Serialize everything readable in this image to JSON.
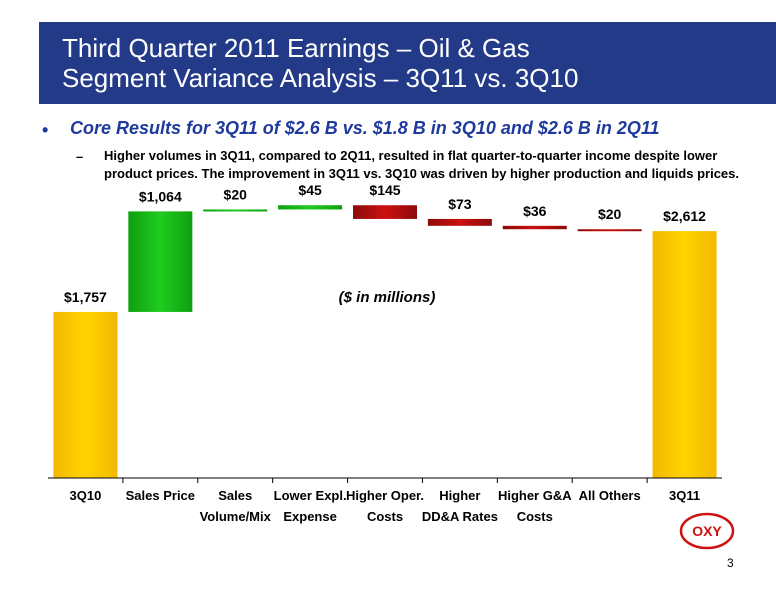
{
  "header": {
    "title_line1": "Third Quarter 2011 Earnings – Oil & Gas",
    "title_line2": "Segment Variance Analysis – 3Q11 vs. 3Q10"
  },
  "bullet": {
    "dot": "•",
    "main": "Core Results for 3Q11 of $2.6 B vs. $1.8 B in 3Q10 and $2.6 B in 2Q11",
    "sub_dash": "–",
    "sub": "Higher volumes in 3Q11, compared to 2Q11, resulted in flat quarter-to-quarter income despite lower product prices.  The improvement in 3Q11 vs. 3Q10 was driven by higher production and liquids prices."
  },
  "chart_data": {
    "type": "bar",
    "subtype": "waterfall",
    "note": "($ in millions)",
    "categories": [
      [
        "3Q10"
      ],
      [
        "Sales Price"
      ],
      [
        "Sales",
        "Volume/Mix"
      ],
      [
        "Lower Expl.",
        "Expense"
      ],
      [
        "Higher Oper.",
        "Costs"
      ],
      [
        "Higher",
        "DD&A Rates"
      ],
      [
        "Higher G&A",
        "Costs"
      ],
      [
        "All Others"
      ],
      [
        "3Q11"
      ]
    ],
    "values": [
      1757,
      1064,
      20,
      45,
      -145,
      -73,
      -36,
      -20,
      2612
    ],
    "labels": [
      "$1,757",
      "$1,064",
      "$20",
      "$45",
      "$145",
      "$73",
      "$36",
      "$20",
      "$2,612"
    ],
    "kinds": [
      "total",
      "delta",
      "delta",
      "delta",
      "delta",
      "delta",
      "delta",
      "delta",
      "total"
    ],
    "ylim": [
      0,
      3100
    ],
    "grid": false,
    "colors": {
      "total": "#ffd400",
      "increase": "#1fcc1f",
      "decrease": "#cc1111"
    }
  },
  "logo": {
    "text": "OXY",
    "icon": "oxy-logo-icon"
  },
  "page": {
    "number": "3"
  }
}
